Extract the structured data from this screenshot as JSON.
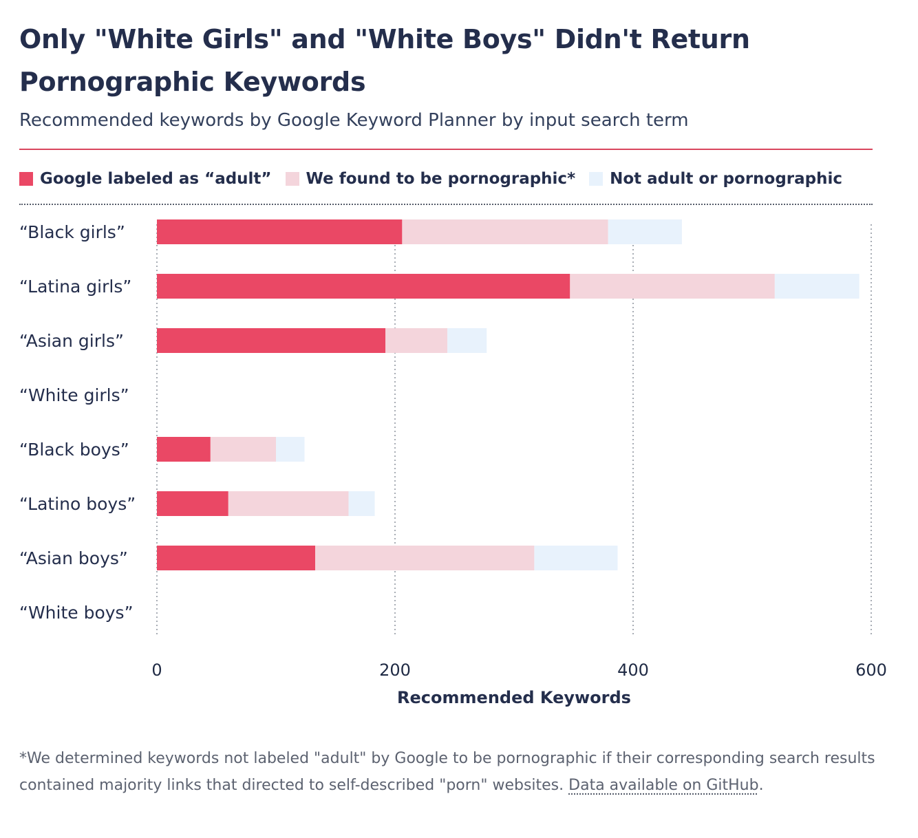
{
  "chart_data": {
    "type": "bar",
    "orientation": "horizontal",
    "stacked": true,
    "title": "Only \"White Girls\" and \"White Boys\" Didn't Return Pornographic Keywords",
    "subtitle": "Recommended keywords by Google Keyword Planner by input search term",
    "xlabel": "Recommended Keywords",
    "ylabel": "",
    "xlim": [
      0,
      600
    ],
    "xticks": [
      "0",
      "200",
      "400",
      "600"
    ],
    "grid": true,
    "legend_position": "top",
    "categories": [
      "“Black girls”",
      "“Latina girls”",
      "“Asian girls”",
      "“White girls”",
      "“Black boys”",
      "“Latino boys”",
      "“Asian boys”",
      "“White boys”"
    ],
    "series": [
      {
        "name": "Google labeled as “adult”",
        "color": "#ea4865",
        "values": [
          206,
          347,
          192,
          0,
          45,
          60,
          133,
          0
        ]
      },
      {
        "name": "We found to be pornographic*",
        "color": "#f4d5dc",
        "values": [
          173,
          172,
          52,
          0,
          55,
          101,
          184,
          0
        ]
      },
      {
        "name": "Not adult or pornographic",
        "color": "#e8f2fc",
        "values": [
          62,
          71,
          33,
          0,
          24,
          22,
          70,
          0
        ]
      }
    ]
  },
  "footnote": {
    "text": "*We determined keywords not labeled \"adult\" by Google to be pornographic if their corresponding search results contained majority links that directed to self-described \"porn\" websites. ",
    "link": "Data available on GitHub",
    "end": "."
  }
}
